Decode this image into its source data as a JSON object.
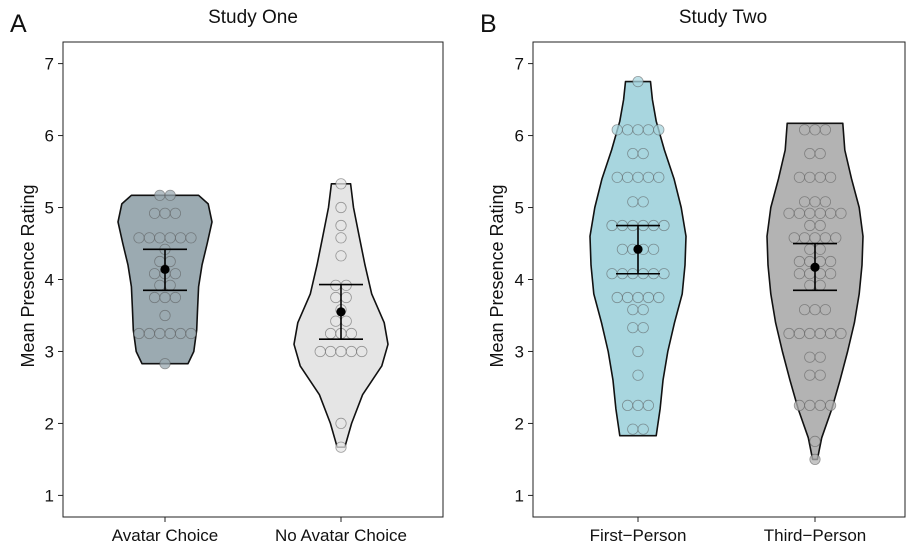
{
  "chart_data": [
    {
      "type": "violin",
      "panel_letter": "A",
      "title": "Study One",
      "xlabel": "",
      "ylabel": "Mean Presence Rating",
      "ylim": [
        0.7,
        7.3
      ],
      "yticks": [
        1,
        2,
        3,
        4,
        5,
        6,
        7
      ],
      "grid": false,
      "groups": [
        {
          "name": "Avatar Choice",
          "color": "#9BAAB1",
          "mean": 4.14,
          "ci": [
            3.85,
            4.42
          ],
          "density": [
            [
              2.83,
              0.48
            ],
            [
              3.0,
              0.6
            ],
            [
              3.3,
              0.66
            ],
            [
              3.6,
              0.68
            ],
            [
              3.9,
              0.7
            ],
            [
              4.2,
              0.77
            ],
            [
              4.5,
              0.88
            ],
            [
              4.8,
              0.98
            ],
            [
              5.05,
              0.9
            ],
            [
              5.17,
              0.7
            ]
          ],
          "points": [
            5.17,
            5.17,
            4.92,
            4.92,
            4.92,
            4.58,
            4.58,
            4.58,
            4.58,
            4.58,
            4.58,
            4.42,
            4.25,
            4.25,
            4.08,
            4.08,
            4.08,
            3.92,
            3.92,
            3.75,
            3.75,
            3.75,
            3.5,
            3.25,
            3.25,
            3.25,
            3.25,
            3.25,
            3.25,
            2.83
          ]
        },
        {
          "name": "No Avatar Choice",
          "color": "#E5E5E5",
          "mean": 3.55,
          "ci": [
            3.17,
            3.93
          ],
          "density": [
            [
              1.67,
              0.08
            ],
            [
              2.0,
              0.22
            ],
            [
              2.4,
              0.45
            ],
            [
              2.8,
              0.85
            ],
            [
              3.1,
              0.98
            ],
            [
              3.4,
              0.9
            ],
            [
              3.8,
              0.64
            ],
            [
              4.2,
              0.5
            ],
            [
              4.6,
              0.38
            ],
            [
              5.0,
              0.26
            ],
            [
              5.33,
              0.2
            ]
          ],
          "points": [
            5.33,
            5.0,
            4.75,
            4.58,
            4.33,
            3.92,
            3.92,
            3.75,
            3.75,
            3.58,
            3.42,
            3.42,
            3.25,
            3.25,
            3.25,
            3.0,
            3.0,
            3.0,
            3.0,
            3.0,
            2.0,
            1.67
          ]
        }
      ]
    },
    {
      "type": "violin",
      "panel_letter": "B",
      "title": "Study Two",
      "xlabel": "",
      "ylabel": "Mean Presence Rating",
      "ylim": [
        0.7,
        7.3
      ],
      "yticks": [
        1,
        2,
        3,
        4,
        5,
        6,
        7
      ],
      "grid": false,
      "groups": [
        {
          "name": "First−Person",
          "color": "#A8D6DF",
          "mean": 4.42,
          "ci": [
            4.08,
            4.75
          ],
          "density": [
            [
              1.83,
              0.38
            ],
            [
              2.2,
              0.46
            ],
            [
              2.6,
              0.52
            ],
            [
              3.0,
              0.62
            ],
            [
              3.4,
              0.76
            ],
            [
              3.8,
              0.92
            ],
            [
              4.2,
              0.98
            ],
            [
              4.6,
              1.0
            ],
            [
              5.0,
              0.9
            ],
            [
              5.4,
              0.75
            ],
            [
              5.8,
              0.55
            ],
            [
              6.2,
              0.38
            ],
            [
              6.5,
              0.3
            ],
            [
              6.75,
              0.26
            ]
          ],
          "points": [
            6.75,
            6.08,
            6.08,
            6.08,
            6.08,
            6.08,
            5.75,
            5.75,
            5.42,
            5.42,
            5.42,
            5.42,
            5.42,
            5.08,
            5.08,
            4.75,
            4.75,
            4.75,
            4.75,
            4.75,
            4.75,
            4.42,
            4.42,
            4.42,
            4.42,
            4.08,
            4.08,
            4.08,
            4.08,
            4.08,
            4.08,
            3.75,
            3.75,
            3.75,
            3.75,
            3.75,
            3.58,
            3.58,
            3.33,
            3.33,
            3.0,
            2.67,
            2.25,
            2.25,
            2.25,
            1.92,
            1.92
          ]
        },
        {
          "name": "Third−Person",
          "color": "#B3B3B3",
          "mean": 4.17,
          "ci": [
            3.85,
            4.5
          ],
          "density": [
            [
              1.5,
              0.05
            ],
            [
              1.8,
              0.14
            ],
            [
              2.2,
              0.35
            ],
            [
              2.6,
              0.52
            ],
            [
              3.0,
              0.68
            ],
            [
              3.4,
              0.82
            ],
            [
              3.8,
              0.92
            ],
            [
              4.2,
              0.98
            ],
            [
              4.6,
              1.0
            ],
            [
              5.0,
              0.92
            ],
            [
              5.4,
              0.76
            ],
            [
              5.8,
              0.62
            ],
            [
              6.17,
              0.58
            ]
          ],
          "points": [
            6.08,
            6.08,
            6.08,
            5.75,
            5.75,
            5.42,
            5.42,
            5.42,
            5.42,
            5.08,
            5.08,
            5.08,
            4.92,
            4.92,
            4.92,
            4.92,
            4.92,
            4.92,
            4.75,
            4.75,
            4.58,
            4.58,
            4.58,
            4.58,
            4.58,
            4.42,
            4.42,
            4.25,
            4.25,
            4.25,
            4.25,
            4.08,
            4.08,
            4.08,
            4.08,
            3.92,
            3.92,
            3.58,
            3.58,
            3.58,
            3.25,
            3.25,
            3.25,
            3.25,
            3.25,
            3.25,
            2.92,
            2.92,
            2.67,
            2.67,
            2.25,
            2.25,
            2.25,
            2.25,
            1.75,
            1.5
          ]
        }
      ]
    }
  ]
}
